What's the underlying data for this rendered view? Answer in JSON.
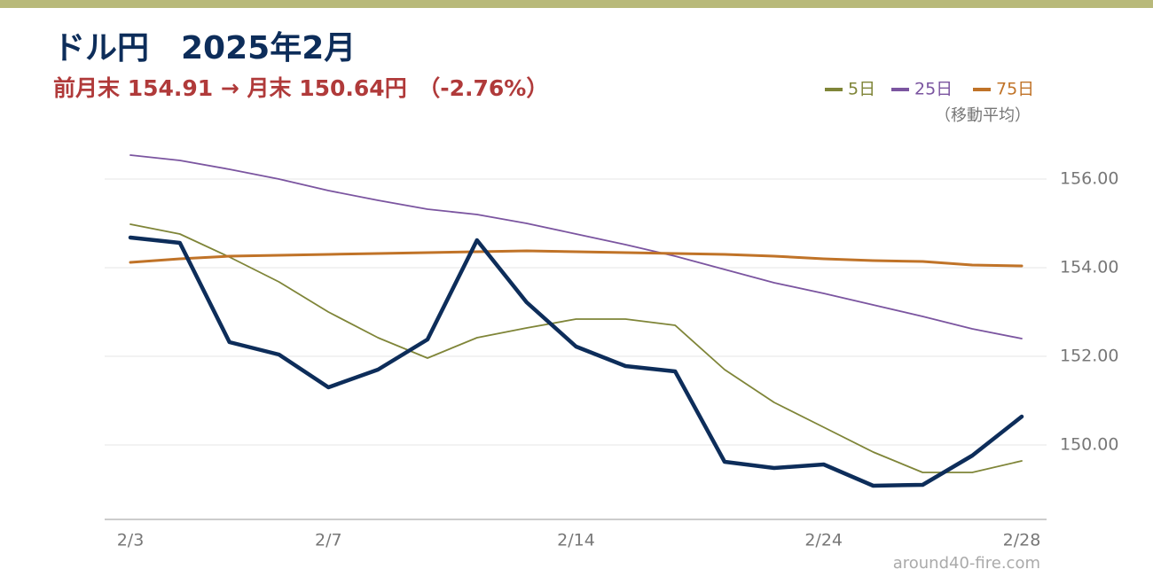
{
  "chart_data": {
    "type": "line",
    "title": "ドル円　2025年2月",
    "subtitle": "前月末 154.91 → 月末 150.64円　（-2.76%）",
    "legend_note": "（移動平均）",
    "source": "around40-fire.com",
    "categories": [
      "2/3",
      null,
      null,
      null,
      "2/7",
      null,
      null,
      null,
      null,
      "2/14",
      null,
      null,
      null,
      null,
      "2/24",
      null,
      null,
      null,
      "2/28"
    ],
    "series": [
      {
        "color": "#0d2d5a",
        "width": 4.5,
        "values": [
          154.68,
          154.56,
          152.32,
          152.04,
          151.3,
          151.7,
          152.38,
          154.62,
          153.22,
          152.22,
          151.78,
          151.66,
          149.62,
          149.48,
          149.56,
          149.08,
          149.1,
          149.76,
          150.64
        ]
      },
      {
        "name": "5日",
        "color": "#7f8538",
        "width": 1.8,
        "values": [
          154.98,
          154.76,
          154.24,
          153.68,
          153.0,
          152.42,
          151.96,
          152.42,
          152.64,
          152.84,
          152.84,
          152.7,
          151.7,
          150.96,
          150.4,
          149.84,
          149.38,
          149.38,
          149.64
        ]
      },
      {
        "name": "25日",
        "color": "#7b55a0",
        "width": 1.8,
        "values": [
          156.54,
          156.42,
          156.22,
          156.0,
          155.74,
          155.52,
          155.32,
          155.2,
          155.0,
          154.76,
          154.52,
          154.26,
          153.96,
          153.66,
          153.42,
          153.16,
          152.9,
          152.62,
          152.4
        ]
      },
      {
        "name": "75日",
        "color": "#c07328",
        "width": 3,
        "values": [
          154.12,
          154.2,
          154.26,
          154.28,
          154.3,
          154.32,
          154.34,
          154.36,
          154.38,
          154.36,
          154.34,
          154.32,
          154.3,
          154.26,
          154.2,
          154.16,
          154.14,
          154.06,
          154.04
        ]
      }
    ],
    "ylim": [
      148.3,
      156.8
    ],
    "yticks": [
      {
        "value": 150,
        "label": "150.00"
      },
      {
        "value": 152,
        "label": "152.00"
      },
      {
        "value": 154,
        "label": "154.00"
      },
      {
        "value": 156,
        "label": "156.00"
      }
    ],
    "grid": true
  }
}
